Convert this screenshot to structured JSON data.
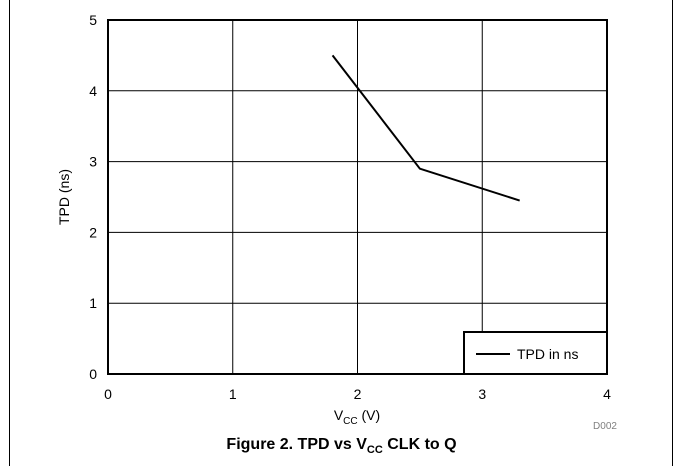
{
  "chart_data": {
    "type": "line",
    "xlim": [
      0,
      4
    ],
    "ylim": [
      0,
      5
    ],
    "x_ticks": [
      "0",
      "1",
      "2",
      "3",
      "4"
    ],
    "y_ticks": [
      "0",
      "1",
      "2",
      "3",
      "4",
      "5"
    ],
    "xlabel": {
      "main": "V",
      "sub": "CC",
      "unit": " (V)"
    },
    "ylabel": "TPD (ns)",
    "grid": true,
    "legend_position": "bottom-right",
    "series": [
      {
        "name": "TPD in ns",
        "color": "#000000",
        "x": [
          1.8,
          2.5,
          3.3
        ],
        "y": [
          4.5,
          2.9,
          2.45
        ]
      }
    ],
    "code": "D002"
  },
  "caption": {
    "prefix": "Figure 2. TPD vs V",
    "sub": "CC",
    "suffix": " CLK to Q"
  }
}
